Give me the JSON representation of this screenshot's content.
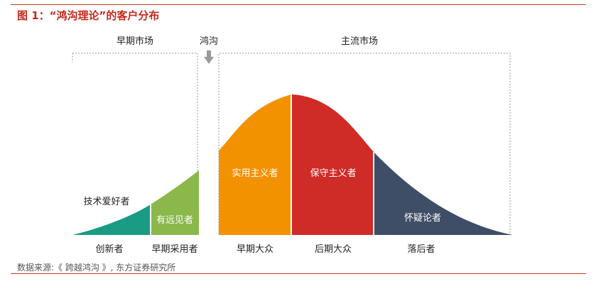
{
  "figure": {
    "title": "图 1：“鸿沟理论”的客户分布",
    "source": "数据来源:《 跨越鸿沟 》, 东方证券研究所"
  },
  "brackets": {
    "early_market": "早期市场",
    "chasm": "鸿沟",
    "mainstream_market": "主流市场"
  },
  "segments": [
    {
      "name": "技术爱好者",
      "category": "创新者",
      "color": "#1a9b83"
    },
    {
      "name": "有远见者",
      "category": "早期采用者",
      "color": "#8bb84a"
    },
    {
      "name": "实用主义者",
      "category": "早期大众",
      "color": "#f39200"
    },
    {
      "name": "保守主义者",
      "category": "后期大众",
      "color": "#cf2b27"
    },
    {
      "name": "怀疑论者",
      "category": "落后者",
      "color": "#3f4e67"
    }
  ]
}
